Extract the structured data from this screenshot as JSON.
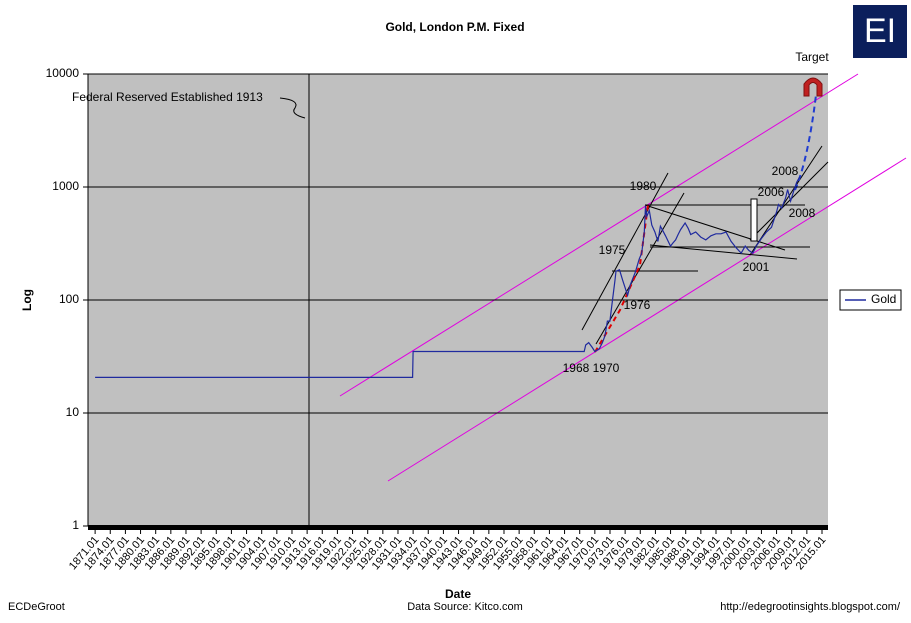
{
  "chart_data": {
    "type": "line",
    "title": "Gold, London P.M. Fixed",
    "x_label": "Date",
    "y_label": "Log",
    "log_scale": true,
    "grid": true,
    "legend_position": "right",
    "xlim": [
      1869.6,
      2016.2
    ],
    "xticks": [
      1871.01,
      1874.01,
      1877.01,
      1880.01,
      1883.01,
      1886.01,
      1889.01,
      1892.01,
      1895.01,
      1898.01,
      1901.01,
      1904.01,
      1907.01,
      1910.01,
      1913.01,
      1916.01,
      1919.01,
      1922.01,
      1925.01,
      1928.01,
      1931.01,
      1934.01,
      1937.01,
      1940.01,
      1943.01,
      1946.01,
      1949.01,
      1952.01,
      1955.01,
      1958.01,
      1961.01,
      1964.01,
      1967.01,
      1970.01,
      1973.01,
      1976.01,
      1979.01,
      1982.01,
      1985.01,
      1988.01,
      1991.01,
      1994.01,
      1997.01,
      2000.01,
      2003.01,
      2006.01,
      2009.01,
      2012.01,
      2015.01
    ],
    "ylim": [
      1,
      10000
    ],
    "yticks": [
      1,
      10,
      100,
      1000,
      10000
    ],
    "series": [
      {
        "name": "Gold",
        "color": "#1f2a9e",
        "x": [
          1871,
          1933.9,
          1934,
          1967.9,
          1968.2,
          1968.8,
          1969.5,
          1970,
          1970.9,
          1971.5,
          1972,
          1972.5,
          1973,
          1973.5,
          1974,
          1974.2,
          1974.9,
          1975.5,
          1976.5,
          1977,
          1978,
          1978.8,
          1979.3,
          1979.8,
          1980.05,
          1980.3,
          1980.8,
          1981.3,
          1981.9,
          1982.5,
          1983,
          1983.5,
          1984,
          1985,
          1985.5,
          1986,
          1986.5,
          1987,
          1987.9,
          1988.5,
          1989,
          1990,
          1991,
          1992,
          1993,
          1994,
          1995,
          1996,
          1997,
          1998,
          1999,
          1999.8,
          2000.5,
          2001.3,
          2002,
          2003,
          2004,
          2005,
          2006,
          2006.4,
          2007,
          2007.8,
          2008.2,
          2008.8,
          2009.5,
          2010,
          2010.6
        ],
        "values": [
          20.67,
          20.67,
          35,
          35,
          40,
          42,
          38,
          35,
          37,
          42,
          48,
          65,
          65,
          100,
          150,
          180,
          185,
          150,
          110,
          135,
          175,
          230,
          260,
          400,
          680,
          550,
          620,
          460,
          400,
          330,
          450,
          410,
          370,
          300,
          320,
          340,
          380,
          420,
          480,
          430,
          380,
          400,
          360,
          340,
          370,
          385,
          385,
          400,
          330,
          290,
          260,
          300,
          275,
          260,
          300,
          350,
          400,
          440,
          600,
          700,
          650,
          800,
          950,
          750,
          950,
          1100,
          1230
        ]
      }
    ],
    "annotations": [
      "Federal Reserved Established 1913",
      "Target",
      "1980",
      "1975",
      "1976",
      "1968 1970",
      "2006",
      "2008",
      "2008",
      "2001"
    ],
    "footer": {
      "left": "ECDeGroot",
      "center": "Data Source:  Kitco.com",
      "right": "http://edegrootinsights.blogspot.com/"
    },
    "logo": "EI"
  }
}
